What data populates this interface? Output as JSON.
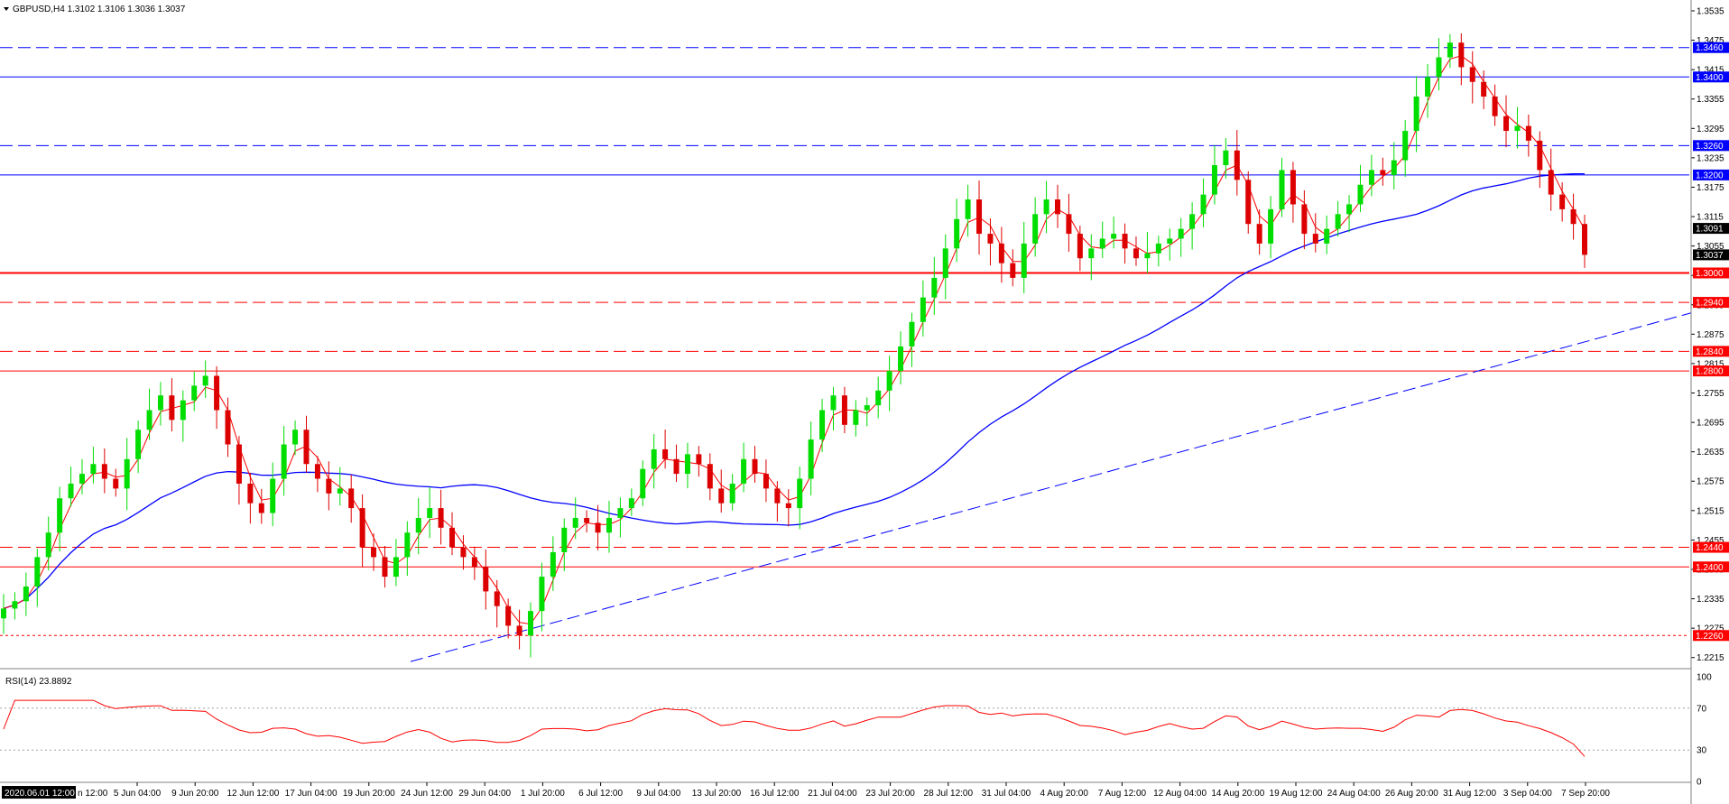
{
  "header": {
    "label": "GBPUSD,H4  1.3102 1.3106 1.3036 1.3037"
  },
  "rsi_header": {
    "label": "RSI(14) 23.8892"
  },
  "first_date_label": "2020.06.01 12:00",
  "colors": {
    "background": "#ffffff",
    "bull": "#00dd00",
    "bear": "#dd0000",
    "ma_fast": "#ff0000",
    "ma_slow": "#0000ff",
    "support": "#ff0000",
    "resistance": "#0000ff",
    "rsi": "#ff0000"
  },
  "chart_data": {
    "type": "candlestick",
    "symbol": "GBPUSD",
    "timeframe": "H4",
    "ohlc_header": {
      "open": 1.3102,
      "high": 1.3106,
      "low": 1.3036,
      "close": 1.3037
    },
    "price_axis": {
      "range": [
        1.2185,
        1.3535
      ],
      "ticks": [
        1.3535,
        1.3475,
        1.3415,
        1.3355,
        1.3295,
        1.3235,
        1.3175,
        1.3115,
        1.3055,
        1.2995,
        1.2935,
        1.2875,
        1.2815,
        1.2755,
        1.2695,
        1.2635,
        1.2575,
        1.2515,
        1.2455,
        1.2395,
        1.2335,
        1.2275,
        1.2215
      ]
    },
    "time_axis": {
      "labels": [
        "5 Jun 04:00",
        "9 Jun 20:00",
        "12 Jun 12:00",
        "17 Jun 04:00",
        "19 Jun 20:00",
        "24 Jun 12:00",
        "29 Jun 04:00",
        "1 Jul 20:00",
        "6 Jul 12:00",
        "9 Jul 04:00",
        "13 Jul 20:00",
        "16 Jul 12:00",
        "21 Jul 04:00",
        "23 Jul 20:00",
        "28 Jul 12:00",
        "31 Jul 04:00",
        "4 Aug 20:00",
        "7 Aug 12:00",
        "12 Aug 04:00",
        "14 Aug 20:00",
        "19 Aug 12:00",
        "24 Aug 04:00",
        "26 Aug 20:00",
        "31 Aug 12:00",
        "3 Sep 04:00",
        "7 Sep 20:00"
      ],
      "first_label_partial": "n 12:00"
    },
    "price_labels": [
      {
        "value": "1.3460",
        "color": "#0000ff"
      },
      {
        "value": "1.3400",
        "color": "#0000ff"
      },
      {
        "value": "1.3260",
        "color": "#0000ff"
      },
      {
        "value": "1.3200",
        "color": "#0000ff"
      },
      {
        "value": "1.3091",
        "color": "#000000"
      },
      {
        "value": "1.3037",
        "color": "#000000"
      },
      {
        "value": "1.3000",
        "color": "#ff0000"
      },
      {
        "value": "1.2940",
        "color": "#ff0000"
      },
      {
        "value": "1.2840",
        "color": "#ff0000"
      },
      {
        "value": "1.2800",
        "color": "#ff0000"
      },
      {
        "value": "1.2440",
        "color": "#ff0000"
      },
      {
        "value": "1.2400",
        "color": "#ff0000"
      },
      {
        "value": "1.2260",
        "color": "#ff0000"
      }
    ],
    "horizontal_levels": [
      {
        "price": 1.346,
        "color": "#0000ff",
        "style": "dashed"
      },
      {
        "price": 1.34,
        "color": "#0000ff",
        "style": "solid"
      },
      {
        "price": 1.326,
        "color": "#0000ff",
        "style": "dashed"
      },
      {
        "price": 1.32,
        "color": "#0000ff",
        "style": "solid"
      },
      {
        "price": 1.3,
        "color": "#ff0000",
        "style": "solid-thick"
      },
      {
        "price": 1.294,
        "color": "#ff0000",
        "style": "dashed"
      },
      {
        "price": 1.284,
        "color": "#ff0000",
        "style": "dashed"
      },
      {
        "price": 1.28,
        "color": "#ff0000",
        "style": "solid"
      },
      {
        "price": 1.244,
        "color": "#ff0000",
        "style": "dashed"
      },
      {
        "price": 1.24,
        "color": "#ff0000",
        "style": "solid"
      },
      {
        "price": 1.226,
        "color": "#ff0000",
        "style": "dotted"
      }
    ],
    "trendline": {
      "from_date": "29 Jun 04:00",
      "from_price": 1.224,
      "to_date": "7 Sep 20:00",
      "to_price": 1.29,
      "color": "#0000ff",
      "style": "dashed"
    },
    "series_closes": [
      1.2315,
      1.233,
      1.236,
      1.242,
      1.247,
      1.254,
      1.257,
      1.259,
      1.261,
      1.258,
      1.256,
      1.262,
      1.268,
      1.272,
      1.275,
      1.27,
      1.274,
      1.277,
      1.279,
      1.272,
      1.265,
      1.257,
      1.253,
      1.251,
      1.258,
      1.265,
      1.268,
      1.261,
      1.258,
      1.255,
      1.256,
      1.252,
      1.244,
      1.242,
      1.238,
      1.242,
      1.247,
      1.25,
      1.252,
      1.248,
      1.244,
      1.242,
      1.24,
      1.235,
      1.232,
      1.228,
      1.226,
      1.231,
      1.238,
      1.243,
      1.248,
      1.25,
      1.249,
      1.247,
      1.25,
      1.252,
      1.254,
      1.26,
      1.264,
      1.262,
      1.259,
      1.263,
      1.261,
      1.256,
      1.253,
      1.257,
      1.262,
      1.259,
      1.256,
      1.253,
      1.252,
      1.258,
      1.266,
      1.272,
      1.275,
      1.269,
      1.272,
      1.273,
      1.276,
      1.28,
      1.285,
      1.29,
      1.295,
      1.299,
      1.305,
      1.311,
      1.315,
      1.308,
      1.306,
      1.302,
      1.299,
      1.306,
      1.312,
      1.315,
      1.312,
      1.308,
      1.303,
      1.305,
      1.307,
      1.308,
      1.305,
      1.303,
      1.304,
      1.306,
      1.307,
      1.309,
      1.312,
      1.316,
      1.322,
      1.325,
      1.319,
      1.31,
      1.306,
      1.313,
      1.321,
      1.314,
      1.308,
      1.306,
      1.309,
      1.312,
      1.314,
      1.318,
      1.321,
      1.32,
      1.323,
      1.329,
      1.336,
      1.34,
      1.344,
      1.347,
      1.342,
      1.339,
      1.336,
      1.332,
      1.329,
      1.33,
      1.327,
      1.321,
      1.316,
      1.313,
      1.31,
      1.3037
    ],
    "rsi": {
      "name": "RSI(14)",
      "last_value": 23.8892,
      "range": [
        0,
        100
      ],
      "levels": [
        70,
        30
      ],
      "axis_labels": [
        "100",
        "70",
        "30",
        "0"
      ]
    },
    "moving_averages": [
      {
        "type": "fast",
        "color": "#ff0000"
      },
      {
        "type": "slow",
        "color": "#0000ff"
      }
    ]
  }
}
